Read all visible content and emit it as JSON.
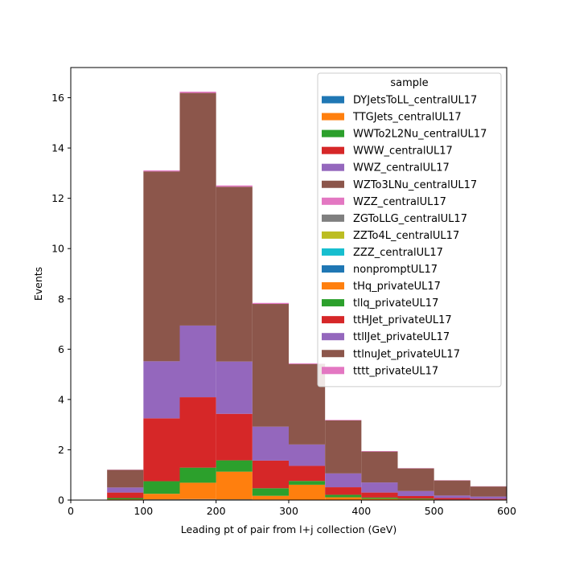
{
  "chart_data": {
    "type": "bar",
    "stacked": true,
    "histogram": true,
    "xlabel": "Leading pt of pair from l+j collection (GeV)",
    "ylabel": "Events",
    "xlim": [
      0,
      600
    ],
    "ylim": [
      0,
      17.2
    ],
    "xticks": [
      "0",
      "100",
      "200",
      "300",
      "400",
      "500",
      "600"
    ],
    "yticks": [
      "0",
      "2",
      "4",
      "6",
      "8",
      "10",
      "12",
      "14",
      "16"
    ],
    "bin_edges": [
      50,
      100,
      150,
      200,
      250,
      300,
      350,
      400,
      450,
      500,
      550,
      600
    ],
    "legend": {
      "title": "sample",
      "position": "top-right"
    },
    "series": [
      {
        "name": "DYJetsToLL_centralUL17",
        "color": "#1f77b4",
        "values": [
          0,
          0,
          0,
          0,
          0,
          0,
          0,
          0,
          0,
          0,
          0
        ]
      },
      {
        "name": "TTGJets_centralUL17",
        "color": "#ff7f0e",
        "values": [
          0,
          0,
          0,
          0,
          0,
          0,
          0,
          0,
          0,
          0,
          0
        ]
      },
      {
        "name": "WWTo2L2Nu_centralUL17",
        "color": "#2ca02c",
        "values": [
          0,
          0,
          0,
          0,
          0,
          0,
          0,
          0,
          0,
          0,
          0
        ]
      },
      {
        "name": "WWW_centralUL17",
        "color": "#d62728",
        "values": [
          0,
          0,
          0,
          0,
          0,
          0,
          0,
          0,
          0,
          0,
          0
        ]
      },
      {
        "name": "WWZ_centralUL17",
        "color": "#9467bd",
        "values": [
          0,
          0,
          0,
          0,
          0,
          0,
          0,
          0,
          0,
          0,
          0
        ]
      },
      {
        "name": "WZTo3LNu_centralUL17",
        "color": "#8c564b",
        "values": [
          0,
          0,
          0,
          0,
          0,
          0,
          0,
          0,
          0,
          0,
          0
        ]
      },
      {
        "name": "WZZ_centralUL17",
        "color": "#e377c2",
        "values": [
          0,
          0,
          0,
          0,
          0,
          0,
          0,
          0,
          0,
          0,
          0
        ]
      },
      {
        "name": "ZGToLLG_centralUL17",
        "color": "#7f7f7f",
        "values": [
          0.01,
          0.03,
          0.04,
          0.03,
          0.02,
          0.01,
          0.01,
          0,
          0,
          0,
          0
        ]
      },
      {
        "name": "ZZTo4L_centralUL17",
        "color": "#bcbd22",
        "values": [
          0,
          0,
          0,
          0,
          0,
          0,
          0,
          0,
          0,
          0,
          0
        ]
      },
      {
        "name": "ZZZ_centralUL17",
        "color": "#17becf",
        "values": [
          0,
          0,
          0,
          0,
          0,
          0,
          0,
          0,
          0,
          0,
          0
        ]
      },
      {
        "name": "nonpromptUL17",
        "color": "#1f77b4",
        "values": [
          0,
          0,
          0,
          0,
          0,
          0,
          0,
          0,
          0,
          0,
          0
        ]
      },
      {
        "name": "tHq_privateUL17",
        "color": "#ff7f0e",
        "values": [
          0.02,
          0.22,
          0.65,
          1.1,
          0.15,
          0.6,
          0.1,
          0.05,
          0.03,
          0.01,
          0.01
        ]
      },
      {
        "name": "tllq_privateUL17",
        "color": "#2ca02c",
        "values": [
          0.05,
          0.5,
          0.6,
          0.45,
          0.3,
          0.15,
          0.1,
          0.05,
          0.03,
          0.01,
          0.01
        ]
      },
      {
        "name": "ttHJet_privateUL17",
        "color": "#d62728",
        "values": [
          0.22,
          2.5,
          2.8,
          1.85,
          1.1,
          0.6,
          0.3,
          0.2,
          0.1,
          0.06,
          0.03
        ]
      },
      {
        "name": "ttllJet_privateUL17",
        "color": "#9467bd",
        "values": [
          0.2,
          2.27,
          2.85,
          2.08,
          1.35,
          0.85,
          0.55,
          0.4,
          0.2,
          0.1,
          0.09
        ]
      },
      {
        "name": "ttlnuJet_privateUL17",
        "color": "#8c564b",
        "values": [
          0.7,
          7.55,
          9.25,
          6.95,
          4.88,
          3.2,
          2.11,
          1.23,
          0.9,
          0.6,
          0.4
        ]
      },
      {
        "name": "tttt_privateUL17",
        "color": "#e377c2",
        "values": [
          0.01,
          0.04,
          0.05,
          0.05,
          0.04,
          0.03,
          0.02,
          0.02,
          0.01,
          0.01,
          0.01
        ]
      }
    ]
  }
}
